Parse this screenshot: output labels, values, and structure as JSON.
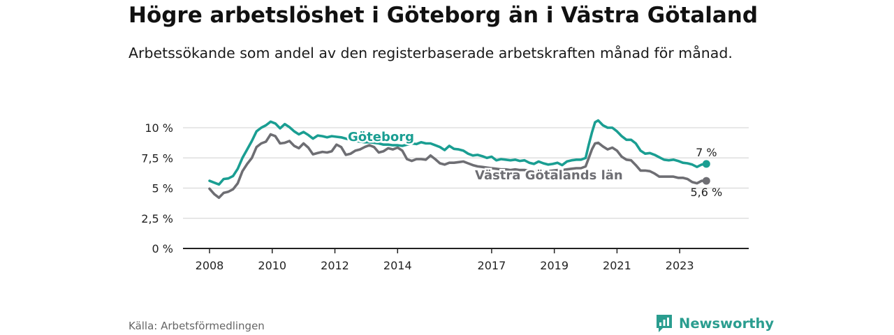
{
  "title": "Högre arbetslöshet i Göteborg än i Västra Götaland",
  "subtitle": "Arbetssökande som andel av den registerbaserade arbetskraften månad för månad.",
  "source": "Källa: Arbetsförmedlingen",
  "brand": "Newsworthy",
  "colors": {
    "goteborg": "#1a9e92",
    "vastra": "#6e6e73",
    "grid": "#d9d9d9",
    "axis": "#222222",
    "text": "#222222"
  },
  "chart_data": {
    "type": "line",
    "title": "Högre arbetslöshet i Göteborg än i Västra Götaland",
    "xlabel": "",
    "ylabel": "",
    "xlim": [
      2008,
      2024.4
    ],
    "ylim": [
      0,
      10
    ],
    "y_ticks": [
      0,
      2.5,
      5,
      7.5,
      10
    ],
    "y_tick_labels": [
      "0 %",
      "2,5 %",
      "5 %",
      "7,5 %",
      "10 %"
    ],
    "x_ticks": [
      2008,
      2010,
      2012,
      2014,
      2017,
      2019,
      2021,
      2023
    ],
    "x_tick_labels": [
      "2008",
      "2010",
      "2012",
      "2014",
      "2017",
      "2019",
      "2021",
      "2023"
    ],
    "grid": true,
    "series": [
      {
        "name": "Göteborg",
        "label": "Göteborg",
        "end_label": "7 %",
        "points": [
          [
            2008.0,
            5.6
          ],
          [
            2008.15,
            5.45
          ],
          [
            2008.3,
            5.3
          ],
          [
            2008.45,
            5.75
          ],
          [
            2008.6,
            5.8
          ],
          [
            2008.75,
            6.0
          ],
          [
            2008.9,
            6.6
          ],
          [
            2009.05,
            7.5
          ],
          [
            2009.2,
            8.2
          ],
          [
            2009.35,
            8.9
          ],
          [
            2009.5,
            9.7
          ],
          [
            2009.65,
            10.0
          ],
          [
            2009.8,
            10.2
          ],
          [
            2009.95,
            10.5
          ],
          [
            2010.1,
            10.35
          ],
          [
            2010.25,
            9.95
          ],
          [
            2010.4,
            10.3
          ],
          [
            2010.55,
            10.05
          ],
          [
            2010.7,
            9.7
          ],
          [
            2010.85,
            9.45
          ],
          [
            2011.0,
            9.65
          ],
          [
            2011.15,
            9.4
          ],
          [
            2011.3,
            9.1
          ],
          [
            2011.45,
            9.35
          ],
          [
            2011.6,
            9.3
          ],
          [
            2011.75,
            9.2
          ],
          [
            2011.9,
            9.3
          ],
          [
            2012.05,
            9.25
          ],
          [
            2012.2,
            9.2
          ],
          [
            2012.35,
            9.1
          ],
          [
            2012.5,
            9.0
          ],
          [
            2012.65,
            8.9
          ],
          [
            2012.8,
            8.85
          ],
          [
            2012.95,
            8.8
          ],
          [
            2013.1,
            8.8
          ],
          [
            2013.25,
            8.75
          ],
          [
            2013.4,
            8.7
          ],
          [
            2013.55,
            8.6
          ],
          [
            2013.7,
            8.6
          ],
          [
            2013.85,
            8.55
          ],
          [
            2014.0,
            8.55
          ],
          [
            2014.15,
            8.5
          ],
          [
            2014.3,
            8.6
          ],
          [
            2014.45,
            8.7
          ],
          [
            2014.6,
            8.65
          ],
          [
            2014.75,
            8.8
          ],
          [
            2014.9,
            8.7
          ],
          [
            2015.05,
            8.7
          ],
          [
            2015.2,
            8.55
          ],
          [
            2015.35,
            8.4
          ],
          [
            2015.5,
            8.15
          ],
          [
            2015.65,
            8.5
          ],
          [
            2015.8,
            8.25
          ],
          [
            2015.95,
            8.2
          ],
          [
            2016.1,
            8.1
          ],
          [
            2016.25,
            7.85
          ],
          [
            2016.4,
            7.7
          ],
          [
            2016.55,
            7.75
          ],
          [
            2016.7,
            7.65
          ],
          [
            2016.85,
            7.5
          ],
          [
            2017.0,
            7.6
          ],
          [
            2017.15,
            7.3
          ],
          [
            2017.3,
            7.4
          ],
          [
            2017.45,
            7.35
          ],
          [
            2017.6,
            7.3
          ],
          [
            2017.75,
            7.35
          ],
          [
            2017.9,
            7.25
          ],
          [
            2018.05,
            7.3
          ],
          [
            2018.2,
            7.1
          ],
          [
            2018.35,
            7.0
          ],
          [
            2018.5,
            7.2
          ],
          [
            2018.65,
            7.05
          ],
          [
            2018.8,
            6.95
          ],
          [
            2018.95,
            7.0
          ],
          [
            2019.1,
            7.1
          ],
          [
            2019.25,
            6.9
          ],
          [
            2019.4,
            7.2
          ],
          [
            2019.55,
            7.3
          ],
          [
            2019.7,
            7.35
          ],
          [
            2019.85,
            7.35
          ],
          [
            2020.0,
            7.5
          ],
          [
            2020.1,
            8.6
          ],
          [
            2020.2,
            9.6
          ],
          [
            2020.3,
            10.45
          ],
          [
            2020.4,
            10.6
          ],
          [
            2020.55,
            10.2
          ],
          [
            2020.7,
            10.0
          ],
          [
            2020.85,
            10.0
          ],
          [
            2021.0,
            9.7
          ],
          [
            2021.15,
            9.3
          ],
          [
            2021.3,
            9.0
          ],
          [
            2021.45,
            9.0
          ],
          [
            2021.6,
            8.7
          ],
          [
            2021.75,
            8.1
          ],
          [
            2021.9,
            7.85
          ],
          [
            2022.05,
            7.9
          ],
          [
            2022.2,
            7.75
          ],
          [
            2022.35,
            7.55
          ],
          [
            2022.5,
            7.35
          ],
          [
            2022.65,
            7.3
          ],
          [
            2022.8,
            7.35
          ],
          [
            2022.95,
            7.25
          ],
          [
            2023.1,
            7.1
          ],
          [
            2023.25,
            7.05
          ],
          [
            2023.4,
            6.95
          ],
          [
            2023.55,
            6.75
          ],
          [
            2023.7,
            6.95
          ],
          [
            2023.85,
            7.0
          ]
        ]
      },
      {
        "name": "Västra Götalands län",
        "label": "Västra Götalands län",
        "end_label": "5,6 %",
        "points": [
          [
            2008.0,
            4.95
          ],
          [
            2008.15,
            4.5
          ],
          [
            2008.3,
            4.2
          ],
          [
            2008.45,
            4.6
          ],
          [
            2008.6,
            4.7
          ],
          [
            2008.75,
            4.9
          ],
          [
            2008.9,
            5.4
          ],
          [
            2009.05,
            6.4
          ],
          [
            2009.2,
            7.0
          ],
          [
            2009.35,
            7.5
          ],
          [
            2009.5,
            8.4
          ],
          [
            2009.65,
            8.7
          ],
          [
            2009.8,
            8.85
          ],
          [
            2009.95,
            9.45
          ],
          [
            2010.1,
            9.3
          ],
          [
            2010.25,
            8.7
          ],
          [
            2010.4,
            8.75
          ],
          [
            2010.55,
            8.9
          ],
          [
            2010.7,
            8.5
          ],
          [
            2010.85,
            8.3
          ],
          [
            2011.0,
            8.7
          ],
          [
            2011.15,
            8.35
          ],
          [
            2011.3,
            7.8
          ],
          [
            2011.45,
            7.9
          ],
          [
            2011.6,
            8.0
          ],
          [
            2011.75,
            7.95
          ],
          [
            2011.9,
            8.05
          ],
          [
            2012.05,
            8.6
          ],
          [
            2012.2,
            8.4
          ],
          [
            2012.35,
            7.75
          ],
          [
            2012.5,
            7.85
          ],
          [
            2012.65,
            8.1
          ],
          [
            2012.8,
            8.2
          ],
          [
            2012.95,
            8.4
          ],
          [
            2013.1,
            8.55
          ],
          [
            2013.25,
            8.4
          ],
          [
            2013.4,
            7.95
          ],
          [
            2013.55,
            8.05
          ],
          [
            2013.7,
            8.3
          ],
          [
            2013.85,
            8.2
          ],
          [
            2014.0,
            8.35
          ],
          [
            2014.15,
            8.1
          ],
          [
            2014.3,
            7.4
          ],
          [
            2014.45,
            7.25
          ],
          [
            2014.6,
            7.4
          ],
          [
            2014.75,
            7.4
          ],
          [
            2014.9,
            7.35
          ],
          [
            2015.05,
            7.7
          ],
          [
            2015.2,
            7.4
          ],
          [
            2015.35,
            7.05
          ],
          [
            2015.5,
            6.95
          ],
          [
            2015.65,
            7.1
          ],
          [
            2015.8,
            7.1
          ],
          [
            2015.95,
            7.15
          ],
          [
            2016.1,
            7.2
          ],
          [
            2016.25,
            7.05
          ],
          [
            2016.4,
            6.9
          ],
          [
            2016.55,
            6.8
          ],
          [
            2016.7,
            6.75
          ],
          [
            2016.85,
            6.7
          ],
          [
            2017.0,
            6.65
          ],
          [
            2017.15,
            6.6
          ],
          [
            2017.3,
            6.55
          ],
          [
            2017.45,
            6.55
          ],
          [
            2017.6,
            6.5
          ],
          [
            2017.75,
            6.55
          ],
          [
            2017.9,
            6.5
          ],
          [
            2018.05,
            6.5
          ],
          [
            2018.2,
            6.45
          ],
          [
            2018.35,
            6.4
          ],
          [
            2018.5,
            6.45
          ],
          [
            2018.65,
            6.45
          ],
          [
            2018.8,
            6.4
          ],
          [
            2018.95,
            6.45
          ],
          [
            2019.1,
            6.5
          ],
          [
            2019.25,
            6.5
          ],
          [
            2019.4,
            6.55
          ],
          [
            2019.55,
            6.6
          ],
          [
            2019.7,
            6.65
          ],
          [
            2019.85,
            6.65
          ],
          [
            2020.0,
            6.8
          ],
          [
            2020.1,
            7.5
          ],
          [
            2020.2,
            8.2
          ],
          [
            2020.3,
            8.7
          ],
          [
            2020.4,
            8.75
          ],
          [
            2020.55,
            8.45
          ],
          [
            2020.7,
            8.2
          ],
          [
            2020.85,
            8.35
          ],
          [
            2021.0,
            8.1
          ],
          [
            2021.15,
            7.6
          ],
          [
            2021.3,
            7.35
          ],
          [
            2021.45,
            7.3
          ],
          [
            2021.6,
            6.9
          ],
          [
            2021.75,
            6.45
          ],
          [
            2021.9,
            6.45
          ],
          [
            2022.05,
            6.4
          ],
          [
            2022.2,
            6.2
          ],
          [
            2022.35,
            5.95
          ],
          [
            2022.5,
            5.95
          ],
          [
            2022.65,
            5.95
          ],
          [
            2022.8,
            5.95
          ],
          [
            2022.95,
            5.85
          ],
          [
            2023.1,
            5.85
          ],
          [
            2023.25,
            5.75
          ],
          [
            2023.4,
            5.5
          ],
          [
            2023.55,
            5.4
          ],
          [
            2023.7,
            5.6
          ],
          [
            2023.85,
            5.6
          ]
        ]
      }
    ]
  }
}
